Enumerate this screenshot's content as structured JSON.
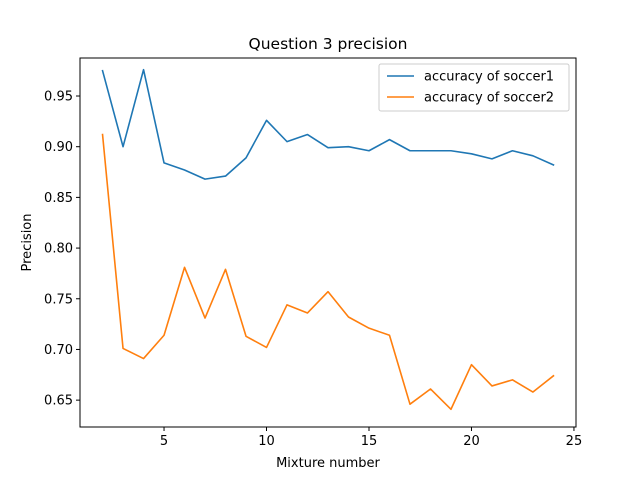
{
  "chart_data": {
    "type": "line",
    "title": "Question 3  precision",
    "xlabel": "Mixture number",
    "ylabel": "Precision",
    "xlim": [
      0.9,
      25.1
    ],
    "ylim": [
      0.6235,
      0.9875
    ],
    "xticks": [
      5,
      10,
      15,
      20,
      25
    ],
    "yticks": [
      0.65,
      0.7,
      0.75,
      0.8,
      0.85,
      0.9,
      0.95
    ],
    "ytick_labels": [
      "0.65",
      "0.70",
      "0.75",
      "0.80",
      "0.85",
      "0.90",
      "0.95"
    ],
    "grid": false,
    "legend_position": "top-right",
    "x": [
      2,
      3,
      4,
      5,
      6,
      7,
      8,
      9,
      10,
      11,
      12,
      13,
      14,
      15,
      16,
      17,
      18,
      19,
      20,
      21,
      22,
      23,
      24
    ],
    "series": [
      {
        "name": "accuracy of soccer1",
        "color": "#1f77b4",
        "values": [
          0.975,
          0.9,
          0.976,
          0.884,
          0.877,
          0.868,
          0.871,
          0.889,
          0.926,
          0.905,
          0.912,
          0.899,
          0.9,
          0.896,
          0.907,
          0.896,
          0.896,
          0.896,
          0.893,
          0.888,
          0.896,
          0.891,
          0.882
        ]
      },
      {
        "name": "accuracy of soccer2",
        "color": "#ff7f0e",
        "values": [
          0.912,
          0.701,
          0.691,
          0.714,
          0.781,
          0.731,
          0.779,
          0.713,
          0.702,
          0.744,
          0.736,
          0.757,
          0.732,
          0.721,
          0.714,
          0.646,
          0.661,
          0.641,
          0.685,
          0.664,
          0.67,
          0.658,
          0.674
        ]
      }
    ]
  }
}
